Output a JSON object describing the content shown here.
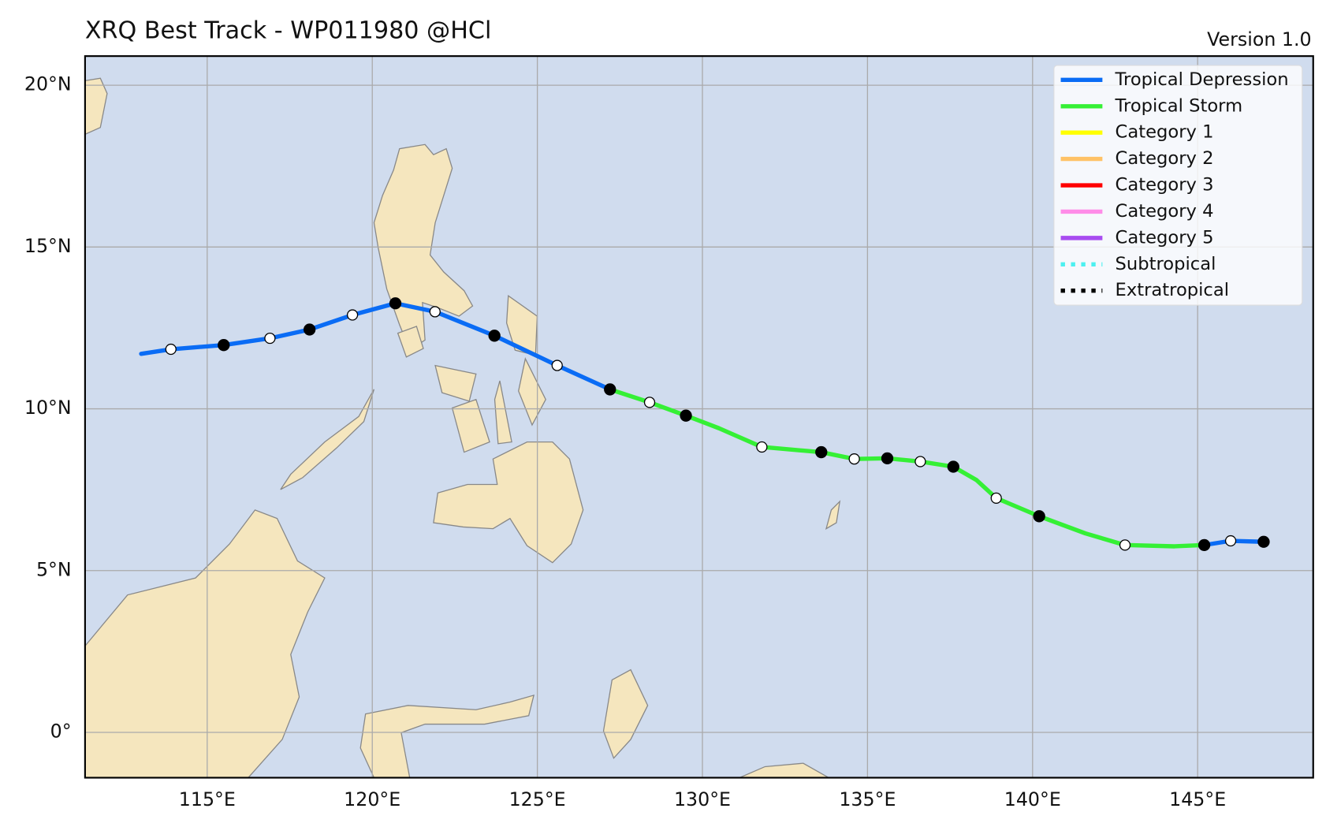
{
  "chart_data": {
    "type": "track",
    "title": "XRQ Best Track - WP011980  @HCl",
    "version": "Version 1.0",
    "xlim": [
      111.3,
      148.5
    ],
    "ylim": [
      -1.4,
      20.9
    ],
    "xticks": [
      {
        "value": 115,
        "label": "115°E"
      },
      {
        "value": 120,
        "label": "120°E"
      },
      {
        "value": 125,
        "label": "125°E"
      },
      {
        "value": 130,
        "label": "130°E"
      },
      {
        "value": 135,
        "label": "135°E"
      },
      {
        "value": 140,
        "label": "140°E"
      },
      {
        "value": 145,
        "label": "145°E"
      }
    ],
    "yticks": [
      {
        "value": 0,
        "label": "0°"
      },
      {
        "value": 5,
        "label": "5°N"
      },
      {
        "value": 10,
        "label": "10°N"
      },
      {
        "value": 15,
        "label": "15°N"
      },
      {
        "value": 20,
        "label": "20°N"
      }
    ],
    "grid": true,
    "legend": "upper right",
    "series": [
      {
        "name": "Tropical Depression",
        "color": "#0a6cf5",
        "style": "solid",
        "lon": [
          113.0,
          113.9,
          115.5,
          116.9,
          118.1,
          119.4,
          120.7,
          121.9,
          123.7,
          125.6,
          127.2,
          null,
          145.2,
          146.0,
          147.0
        ],
        "lat": [
          11.7,
          11.84,
          11.97,
          12.18,
          12.45,
          12.9,
          13.26,
          13.0,
          12.26,
          11.34,
          10.6,
          null,
          5.79,
          5.92,
          5.89
        ],
        "filled": [
          null,
          false,
          true,
          false,
          true,
          false,
          true,
          false,
          true,
          false,
          true,
          null,
          true,
          false,
          true
        ]
      },
      {
        "name": "Tropical Storm",
        "color": "#35f035",
        "style": "solid",
        "lon": [
          127.2,
          128.4,
          129.5,
          130.5,
          131.8,
          133.6,
          134.6,
          135.6,
          136.6,
          137.6,
          138.3,
          138.9,
          140.2,
          141.6,
          142.8,
          144.3,
          145.2
        ],
        "lat": [
          10.6,
          10.2,
          9.79,
          9.4,
          8.82,
          8.66,
          8.45,
          8.47,
          8.37,
          8.21,
          7.8,
          7.24,
          6.68,
          6.15,
          5.79,
          5.75,
          5.79
        ],
        "filled": [
          null,
          false,
          true,
          null,
          false,
          true,
          false,
          true,
          false,
          true,
          null,
          false,
          true,
          null,
          false,
          null,
          null
        ]
      },
      {
        "name": "Category 1",
        "color": "#ffff00",
        "style": "solid"
      },
      {
        "name": "Category 2",
        "color": "#ffc266",
        "style": "solid"
      },
      {
        "name": "Category 3",
        "color": "#ff0000",
        "style": "solid"
      },
      {
        "name": "Category 4",
        "color": "#ff8ce8",
        "style": "solid"
      },
      {
        "name": "Category 5",
        "color": "#a84cf0",
        "style": "solid"
      },
      {
        "name": "Subtropical",
        "color": "#4df0f0",
        "style": "dotted"
      },
      {
        "name": "Extratropical",
        "color": "#000000",
        "style": "dotted"
      }
    ]
  }
}
